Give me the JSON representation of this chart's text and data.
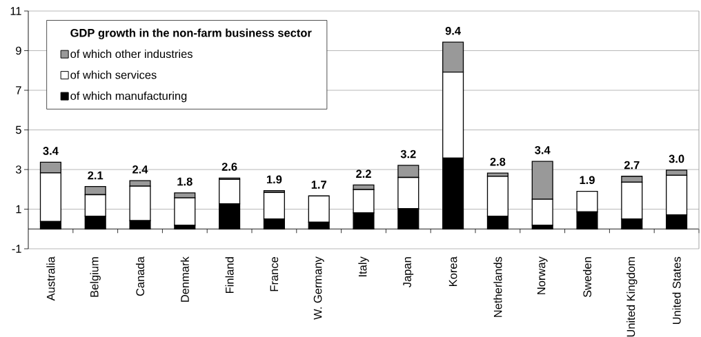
{
  "chart_data": {
    "type": "bar",
    "stacked": true,
    "legend_title": "GDP growth in the non-farm business sector",
    "categories": [
      "Australia",
      "Belgium",
      "Canada",
      "Denmark",
      "Finland",
      "France",
      "W. Germany",
      "Italy",
      "Japan",
      "Korea",
      "Netherlands",
      "Norway",
      "Sweden",
      "United Kingdom",
      "United States"
    ],
    "series": [
      {
        "name": "of which manufacturing",
        "color": "#000000",
        "values": [
          0.38,
          0.65,
          0.42,
          0.19,
          1.27,
          0.51,
          0.34,
          0.81,
          1.03,
          3.58,
          0.65,
          0.19,
          0.86,
          0.51,
          0.71
        ]
      },
      {
        "name": "of which services",
        "color": "#ffffff",
        "values": [
          2.45,
          1.08,
          1.74,
          1.38,
          1.23,
          1.33,
          1.33,
          1.18,
          1.57,
          4.34,
          2.01,
          1.31,
          1.04,
          1.85,
          2.0
        ]
      },
      {
        "name": "of which other industries",
        "color": "#999999",
        "values": [
          0.54,
          0.41,
          0.28,
          0.25,
          0.07,
          0.09,
          0,
          0.23,
          0.61,
          1.51,
          0.16,
          1.91,
          0,
          0.3,
          0.26
        ]
      }
    ],
    "totals": [
      "3.4",
      "2.1",
      "2.4",
      "1.8",
      "2.6",
      "1.9",
      "1.7",
      "2.2",
      "3.2",
      "9.4",
      "2.8",
      "3.4",
      "1.9",
      "2.7",
      "3.0"
    ],
    "ylim": [
      -1,
      11
    ],
    "yticks": [
      -1,
      1,
      3,
      5,
      7,
      9,
      11
    ],
    "grid": "y",
    "legend": "top left"
  }
}
